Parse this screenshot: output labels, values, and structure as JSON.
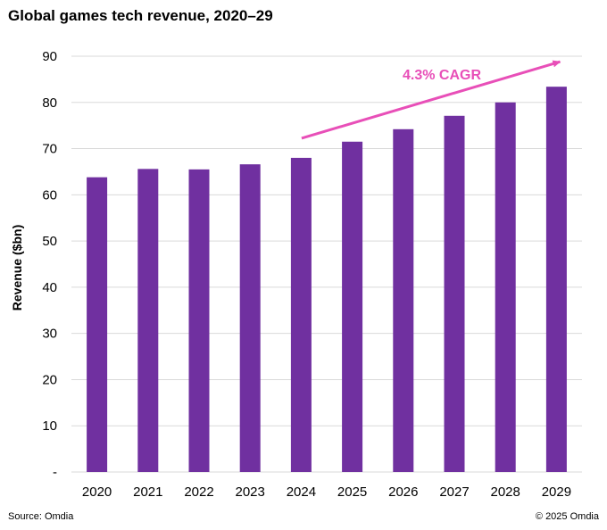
{
  "header": {
    "title": "Global games tech revenue, 2020–29"
  },
  "footer": {
    "source": "Source: Omdia",
    "copyright": "© 2025 Omdia"
  },
  "chart_data": {
    "type": "bar",
    "title": "Global games tech revenue, 2020–29",
    "xlabel": "",
    "ylabel": "Revenue ($bn)",
    "categories": [
      "2020",
      "2021",
      "2022",
      "2023",
      "2024",
      "2025",
      "2026",
      "2027",
      "2028",
      "2029"
    ],
    "values": [
      63.8,
      65.6,
      65.5,
      66.6,
      68.0,
      71.5,
      74.2,
      77.1,
      80.0,
      83.4
    ],
    "ylim": [
      0,
      90
    ],
    "yticks": [
      0,
      10,
      20,
      30,
      40,
      50,
      60,
      70,
      80,
      90
    ],
    "ytick_labels": [
      "-",
      "10",
      "20",
      "30",
      "40",
      "50",
      "60",
      "70",
      "80",
      "90"
    ],
    "grid": true,
    "bar_color": "#7030a0",
    "annotation": {
      "text": "4.3% CAGR",
      "color": "#e84fb8",
      "from_category": "2024",
      "to_category": "2029"
    }
  }
}
